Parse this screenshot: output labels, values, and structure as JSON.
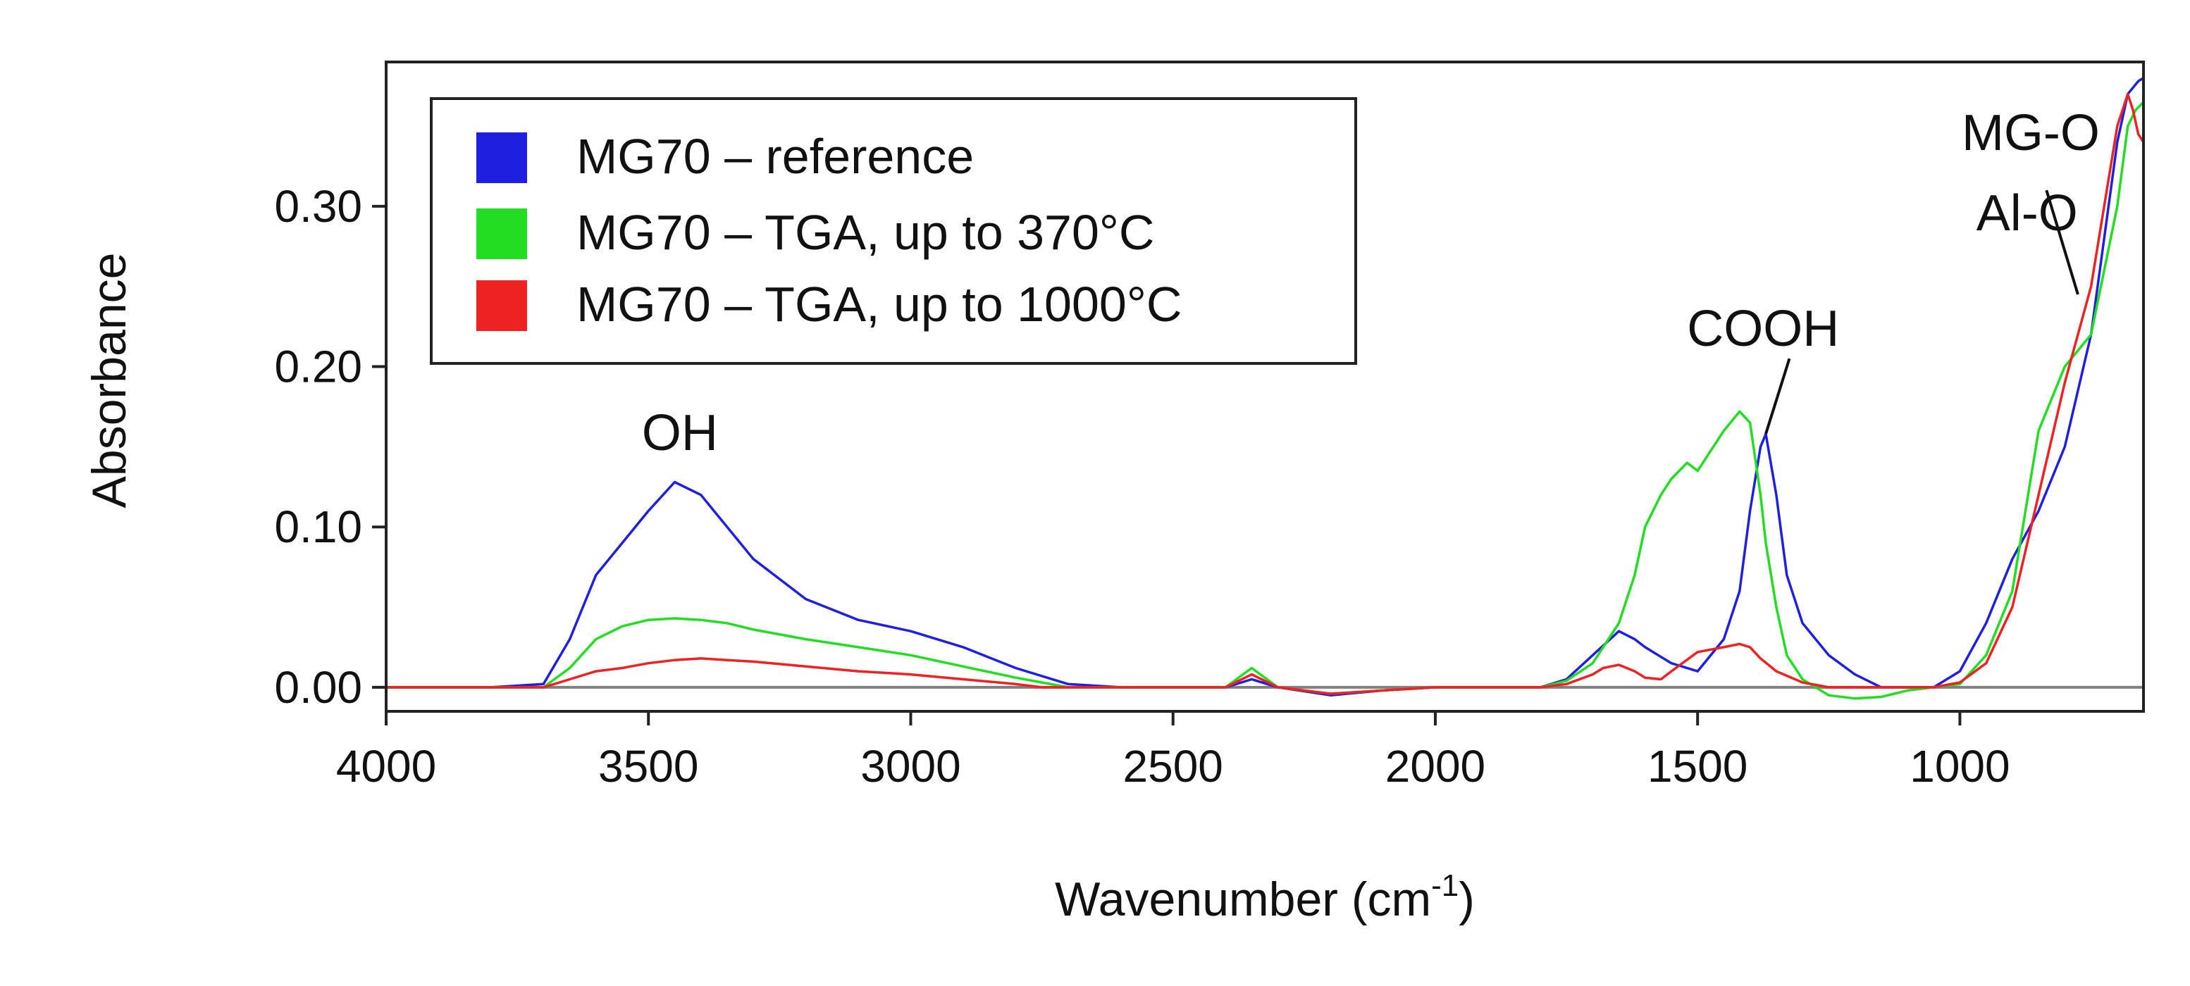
{
  "chart_data": {
    "type": "line",
    "title": "",
    "xlabel": "Wavenumber (cm",
    "xlabel_sup": "-1",
    "xlabel_close": ")",
    "ylabel": "Absorbance",
    "xlim": [
      4000,
      650
    ],
    "ylim": [
      -0.015,
      0.39
    ],
    "x_ticks": [
      4000,
      3500,
      3000,
      2500,
      2000,
      1500,
      1000
    ],
    "x_tick_labels": [
      "4000",
      "3500",
      "3000",
      "2500",
      "2000",
      "1500",
      "1000"
    ],
    "y_ticks": [
      0.0,
      0.1,
      0.2,
      0.3
    ],
    "y_tick_labels": [
      "0.00",
      "0.10",
      "0.20",
      "0.30"
    ],
    "grid": false,
    "legend_position": "top-left",
    "baseline": {
      "value": 0,
      "color": "#808080"
    },
    "series": [
      {
        "name": "MG70 – reference",
        "color": "#1f1fe0",
        "x": [
          4000,
          3800,
          3700,
          3650,
          3600,
          3550,
          3500,
          3450,
          3400,
          3350,
          3300,
          3200,
          3100,
          3000,
          2900,
          2800,
          2700,
          2600,
          2400,
          2350,
          2300,
          2200,
          2100,
          2000,
          1900,
          1800,
          1750,
          1700,
          1650,
          1620,
          1600,
          1550,
          1500,
          1450,
          1420,
          1400,
          1380,
          1370,
          1350,
          1330,
          1300,
          1250,
          1200,
          1150,
          1100,
          1050,
          1000,
          950,
          900,
          850,
          800,
          750,
          700,
          680,
          660,
          650
        ],
        "y": [
          0.0,
          0.0,
          0.002,
          0.03,
          0.07,
          0.09,
          0.11,
          0.128,
          0.12,
          0.1,
          0.08,
          0.055,
          0.042,
          0.035,
          0.025,
          0.012,
          0.002,
          0.0,
          0.0,
          0.005,
          0.0,
          -0.005,
          -0.002,
          0.0,
          0.0,
          0.0,
          0.005,
          0.02,
          0.035,
          0.03,
          0.025,
          0.015,
          0.01,
          0.03,
          0.06,
          0.11,
          0.15,
          0.158,
          0.12,
          0.07,
          0.04,
          0.02,
          0.008,
          0.0,
          0.0,
          0.0,
          0.01,
          0.04,
          0.08,
          0.11,
          0.15,
          0.22,
          0.34,
          0.37,
          0.378,
          0.38
        ]
      },
      {
        "name": "MG70 – TGA, up to 370°C",
        "color": "#22dd22",
        "x": [
          4000,
          3800,
          3700,
          3650,
          3600,
          3550,
          3500,
          3450,
          3400,
          3350,
          3300,
          3200,
          3100,
          3000,
          2900,
          2800,
          2750,
          2700,
          2400,
          2350,
          2300,
          2200,
          2100,
          2000,
          1900,
          1800,
          1750,
          1700,
          1650,
          1620,
          1600,
          1570,
          1550,
          1520,
          1500,
          1470,
          1450,
          1420,
          1400,
          1380,
          1370,
          1350,
          1330,
          1300,
          1250,
          1200,
          1150,
          1100,
          1050,
          1000,
          950,
          900,
          850,
          800,
          750,
          700,
          680,
          665,
          650
        ],
        "y": [
          0.0,
          0.0,
          0.0,
          0.012,
          0.03,
          0.038,
          0.042,
          0.043,
          0.042,
          0.04,
          0.036,
          0.03,
          0.025,
          0.02,
          0.013,
          0.006,
          0.003,
          0.0,
          0.0,
          0.012,
          0.0,
          -0.004,
          -0.002,
          0.0,
          0.0,
          0.0,
          0.004,
          0.015,
          0.04,
          0.07,
          0.1,
          0.12,
          0.13,
          0.14,
          0.135,
          0.15,
          0.16,
          0.172,
          0.165,
          0.12,
          0.09,
          0.05,
          0.02,
          0.005,
          -0.005,
          -0.007,
          -0.006,
          -0.002,
          0.0,
          0.002,
          0.02,
          0.06,
          0.16,
          0.2,
          0.22,
          0.3,
          0.35,
          0.36,
          0.365
        ]
      },
      {
        "name": "MG70 – TGA, up to 1000°C",
        "color": "#ee2222",
        "x": [
          4000,
          3800,
          3700,
          3650,
          3600,
          3550,
          3500,
          3450,
          3400,
          3350,
          3300,
          3200,
          3100,
          3000,
          2900,
          2800,
          2750,
          2700,
          2400,
          2350,
          2300,
          2200,
          2100,
          2000,
          1900,
          1800,
          1750,
          1700,
          1680,
          1650,
          1620,
          1600,
          1570,
          1550,
          1500,
          1450,
          1420,
          1400,
          1380,
          1350,
          1300,
          1250,
          1200,
          1150,
          1100,
          1050,
          1000,
          950,
          900,
          850,
          800,
          750,
          700,
          680,
          670,
          660,
          650
        ],
        "y": [
          0.0,
          0.0,
          0.0,
          0.005,
          0.01,
          0.012,
          0.015,
          0.017,
          0.018,
          0.017,
          0.016,
          0.013,
          0.01,
          0.008,
          0.005,
          0.002,
          0.0,
          0.0,
          0.0,
          0.008,
          0.0,
          -0.004,
          -0.002,
          0.0,
          0.0,
          0.0,
          0.002,
          0.008,
          0.012,
          0.014,
          0.01,
          0.006,
          0.005,
          0.01,
          0.022,
          0.025,
          0.027,
          0.025,
          0.018,
          0.01,
          0.003,
          0.0,
          0.0,
          0.0,
          0.0,
          0.0,
          0.003,
          0.015,
          0.05,
          0.12,
          0.19,
          0.25,
          0.35,
          0.37,
          0.36,
          0.345,
          0.34
        ]
      }
    ],
    "annotations": [
      {
        "text": "OH",
        "x": 3440,
        "y": 0.148,
        "anchor": "middle"
      },
      {
        "text": "COOH",
        "x": 1375,
        "y": 0.213,
        "anchor": "middle",
        "leader": [
          [
            1325,
            0.205
          ],
          [
            1370,
            0.158
          ]
        ]
      },
      {
        "text": "MG-O",
        "x": 865,
        "y": 0.335,
        "anchor": "middle"
      },
      {
        "text": "Al-O",
        "x": 872,
        "y": 0.285,
        "anchor": "middle",
        "leader": [
          [
            835,
            0.31
          ],
          [
            775,
            0.245
          ]
        ]
      }
    ]
  }
}
